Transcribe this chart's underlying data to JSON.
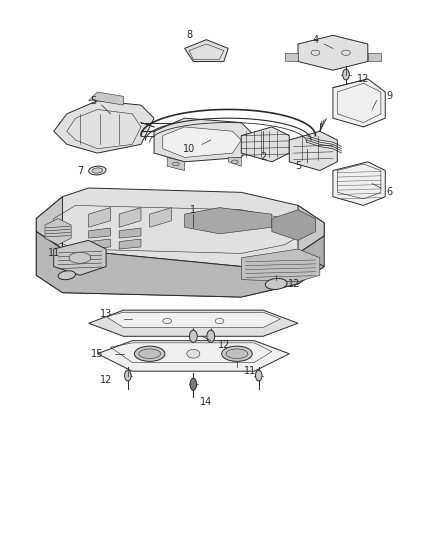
{
  "bg_color": "#ffffff",
  "line_color": "#2a2a2a",
  "fill_light": "#f0f0f0",
  "fill_mid": "#e0e0e0",
  "fill_dark": "#c8c8c8",
  "fill_darker": "#b0b0b0",
  "lw_main": 0.7,
  "lw_thin": 0.4,
  "label_fs": 7.0,
  "figw": 4.39,
  "figh": 5.33,
  "dpi": 100,
  "xlim": [
    0,
    100
  ],
  "ylim": [
    0,
    120
  ]
}
